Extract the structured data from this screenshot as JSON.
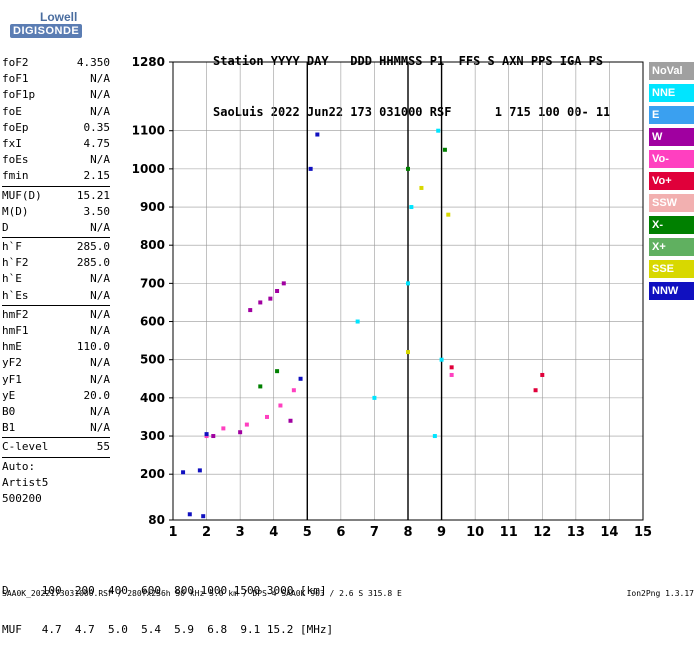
{
  "logo": {
    "line1": "Lowell",
    "line2": "DIGISONDE"
  },
  "header": {
    "line1": "Station YYYY DAY   DDD HHMMSS P1  FFS S AXN PPS IGA PS",
    "line2": "SaoLuis 2022 Jun22 173 031000 RSF      1 715 100 00- 11"
  },
  "params": [
    {
      "name": "foF2",
      "value": "4.350",
      "sep": false
    },
    {
      "name": "foF1",
      "value": "N/A",
      "sep": false
    },
    {
      "name": "foF1p",
      "value": "N/A",
      "sep": false
    },
    {
      "name": "foE",
      "value": "N/A",
      "sep": false
    },
    {
      "name": "foEp",
      "value": "0.35",
      "sep": false
    },
    {
      "name": "fxI",
      "value": "4.75",
      "sep": false
    },
    {
      "name": "foEs",
      "value": "N/A",
      "sep": false
    },
    {
      "name": "fmin",
      "value": "2.15",
      "sep": true
    },
    {
      "name": "MUF(D)",
      "value": "15.21",
      "sep": false
    },
    {
      "name": "M(D)",
      "value": "3.50",
      "sep": false
    },
    {
      "name": "D",
      "value": "N/A",
      "sep": true
    },
    {
      "name": "h`F",
      "value": "285.0",
      "sep": false
    },
    {
      "name": "h`F2",
      "value": "285.0",
      "sep": false
    },
    {
      "name": "h`E",
      "value": "N/A",
      "sep": false
    },
    {
      "name": "h`Es",
      "value": "N/A",
      "sep": true
    },
    {
      "name": "hmF2",
      "value": "N/A",
      "sep": false
    },
    {
      "name": "hmF1",
      "value": "N/A",
      "sep": false
    },
    {
      "name": "hmE",
      "value": "110.0",
      "sep": false
    },
    {
      "name": "yF2",
      "value": "N/A",
      "sep": false
    },
    {
      "name": "yF1",
      "value": "N/A",
      "sep": false
    },
    {
      "name": "yE",
      "value": "20.0",
      "sep": false
    },
    {
      "name": "B0",
      "value": "N/A",
      "sep": false
    },
    {
      "name": "B1",
      "value": "N/A",
      "sep": true
    },
    {
      "name": "C-level",
      "value": "55",
      "sep": true
    },
    {
      "name": "Auto:",
      "value": "",
      "sep": false
    },
    {
      "name": "Artist5",
      "value": "",
      "sep": false
    },
    {
      "name": "500200",
      "value": "",
      "sep": false
    }
  ],
  "legend": [
    {
      "label": "NoVal",
      "color": "#a0a0a0"
    },
    {
      "label": "NNE",
      "color": "#00e5ff"
    },
    {
      "label": "E",
      "color": "#3aa0f0"
    },
    {
      "label": "W",
      "color": "#a000a0"
    },
    {
      "label": "Vo-",
      "color": "#ff40c0"
    },
    {
      "label": "Vo+",
      "color": "#e0003a"
    },
    {
      "label": "SSW",
      "color": "#f2b0b0"
    },
    {
      "label": "X-",
      "color": "#008000"
    },
    {
      "label": "X+",
      "color": "#60b060"
    },
    {
      "label": "SSE",
      "color": "#d8d800"
    },
    {
      "label": "NNW",
      "color": "#1010c0"
    }
  ],
  "chart_data": {
    "type": "scatter",
    "xlim": [
      1,
      15
    ],
    "ylim": [
      80,
      1280
    ],
    "x_ticks": [
      1,
      2,
      3,
      4,
      5,
      6,
      7,
      8,
      9,
      10,
      11,
      12,
      13,
      14,
      15
    ],
    "y_ticks": [
      80,
      200,
      300,
      400,
      500,
      600,
      700,
      800,
      900,
      1000,
      1100,
      1280
    ],
    "grid": true,
    "series": [
      {
        "name": "W",
        "color": "#a000a0",
        "points": [
          [
            3.3,
            630
          ],
          [
            3.6,
            650
          ],
          [
            3.9,
            660
          ],
          [
            4.1,
            680
          ],
          [
            4.3,
            700
          ],
          [
            2.2,
            300
          ],
          [
            3.0,
            310
          ],
          [
            4.5,
            340
          ]
        ]
      },
      {
        "name": "Vo-",
        "color": "#ff40c0",
        "points": [
          [
            2.5,
            320
          ],
          [
            3.2,
            330
          ],
          [
            3.8,
            350
          ],
          [
            4.2,
            380
          ],
          [
            4.6,
            420
          ],
          [
            2.0,
            300
          ],
          [
            9.3,
            460
          ]
        ]
      },
      {
        "name": "NNW",
        "color": "#1010c0",
        "points": [
          [
            1.3,
            205
          ],
          [
            1.8,
            210
          ],
          [
            1.5,
            95
          ],
          [
            1.9,
            90
          ],
          [
            2.0,
            305
          ],
          [
            4.8,
            450
          ],
          [
            5.1,
            1000
          ],
          [
            5.3,
            1090
          ]
        ]
      },
      {
        "name": "NNE",
        "color": "#00e5ff",
        "points": [
          [
            8.0,
            700
          ],
          [
            8.1,
            900
          ],
          [
            8.9,
            1100
          ],
          [
            9.0,
            500
          ],
          [
            6.5,
            600
          ],
          [
            7.0,
            400
          ],
          [
            8.8,
            300
          ]
        ]
      },
      {
        "name": "X-",
        "color": "#008000",
        "points": [
          [
            3.6,
            430
          ],
          [
            4.1,
            470
          ],
          [
            8.0,
            1000
          ],
          [
            9.1,
            1050
          ]
        ]
      },
      {
        "name": "SSE",
        "color": "#d8d800",
        "points": [
          [
            8.4,
            950
          ],
          [
            9.2,
            880
          ],
          [
            8.0,
            520
          ]
        ]
      },
      {
        "name": "Vo+",
        "color": "#e0003a",
        "points": [
          [
            9.3,
            480
          ],
          [
            11.8,
            420
          ],
          [
            12.0,
            460
          ]
        ]
      }
    ],
    "vlines": [
      5.0,
      8.0,
      9.0
    ]
  },
  "dmuf": {
    "line1": "D     100  200  400  600  800 1000 1500 3000 [km]",
    "line2": "MUF   4.7  4.7  5.0  5.4  5.9  6.8  9.1 15.2 [MHz]"
  },
  "footer": "SAA0K_2022173031000.RSF / 280fx256h 50 kHz 5.0 km / DPS-4 SAA0K 903 / 2.6 S 315.8 E",
  "version": "Ion2Png 1.3.17"
}
